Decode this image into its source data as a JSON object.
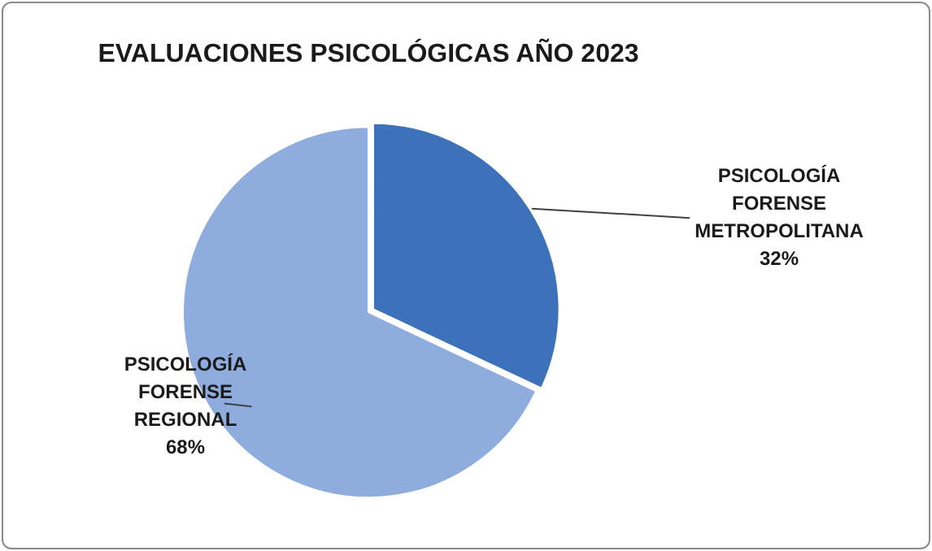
{
  "chart_data": {
    "type": "pie",
    "title": "EVALUACIONES PSICOLÓGICAS AÑO 2023",
    "categories": [
      "PSICOLOGÍA FORENSE METROPOLITANA",
      "PSICOLOGÍA FORENSE REGIONAL"
    ],
    "values": [
      32,
      68
    ],
    "value_labels": [
      "32%",
      "68%"
    ],
    "colors": [
      "#3d72bb",
      "#8eacdd"
    ],
    "legend": false
  }
}
